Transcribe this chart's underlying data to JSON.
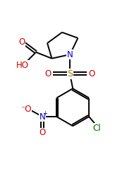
{
  "bg_color": "#ffffff",
  "bond_color": "#000000",
  "atom_colors": {
    "O": "#cc0000",
    "N": "#0000cc",
    "S": "#888800",
    "Cl": "#006600",
    "C": "#000000"
  },
  "figsize": [
    1.63,
    2.73
  ],
  "dpi": 100
}
